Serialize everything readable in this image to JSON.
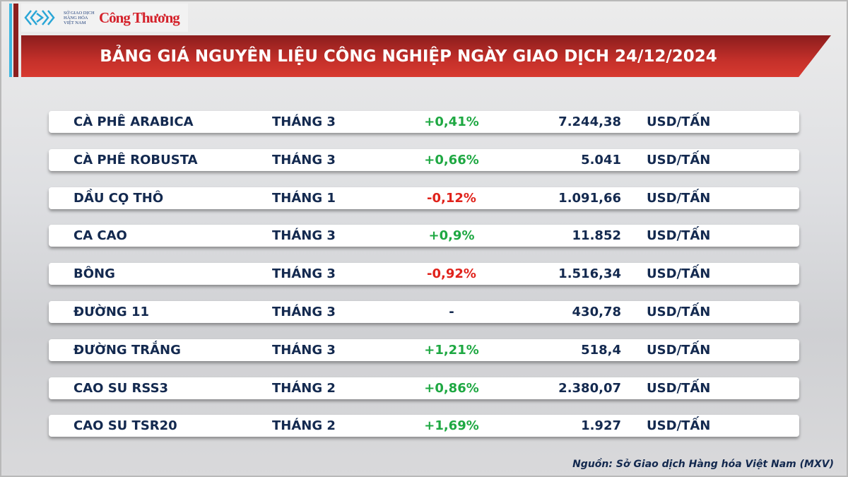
{
  "logo": {
    "mxv": "SỞ GIAO DỊCH HÀNG HÓA VIỆT NAM",
    "brand": "Công Thương"
  },
  "title": "BẢNG GIÁ NGUYÊN LIỆU CÔNG NGHIỆP NGÀY GIAO DỊCH 24/12/2024",
  "colors": {
    "positive": "#1ea842",
    "negative": "#e0221b",
    "header": "#c4302a"
  },
  "rows": [
    {
      "name": "CÀ PHÊ ARABICA",
      "month": "THÁNG 3",
      "change": "+0,41%",
      "price": "7.244,38",
      "unit": "USD/TẤN",
      "dir": "pos"
    },
    {
      "name": "CÀ PHÊ ROBUSTA",
      "month": "THÁNG 3",
      "change": "+0,66%",
      "price": "5.041",
      "unit": "USD/TẤN",
      "dir": "pos"
    },
    {
      "name": "DẦU CỌ THÔ",
      "month": "THÁNG 1",
      "change": "-0,12%",
      "price": "1.091,66",
      "unit": "USD/TẤN",
      "dir": "neg"
    },
    {
      "name": "CA CAO",
      "month": "THÁNG 3",
      "change": "+0,9%",
      "price": "11.852",
      "unit": "USD/TẤN",
      "dir": "pos"
    },
    {
      "name": "BÔNG",
      "month": "THÁNG 3",
      "change": "-0,92%",
      "price": "1.516,34",
      "unit": "USD/TẤN",
      "dir": "neg"
    },
    {
      "name": "ĐƯỜNG 11",
      "month": "THÁNG 3",
      "change": "-",
      "price": "430,78",
      "unit": "USD/TẤN",
      "dir": "neu"
    },
    {
      "name": "ĐƯỜNG TRẮNG",
      "month": "THÁNG 3",
      "change": "+1,21%",
      "price": "518,4",
      "unit": "USD/TẤN",
      "dir": "pos"
    },
    {
      "name": "CAO SU RSS3",
      "month": "THÁNG 2",
      "change": "+0,86%",
      "price": "2.380,07",
      "unit": "USD/TẤN",
      "dir": "pos"
    },
    {
      "name": "CAO SU TSR20",
      "month": "THÁNG 2",
      "change": "+1,69%",
      "price": "1.927",
      "unit": "USD/TẤN",
      "dir": "pos"
    }
  ],
  "source": "Nguồn: Sở Giao dịch Hàng hóa Việt Nam (MXV)"
}
